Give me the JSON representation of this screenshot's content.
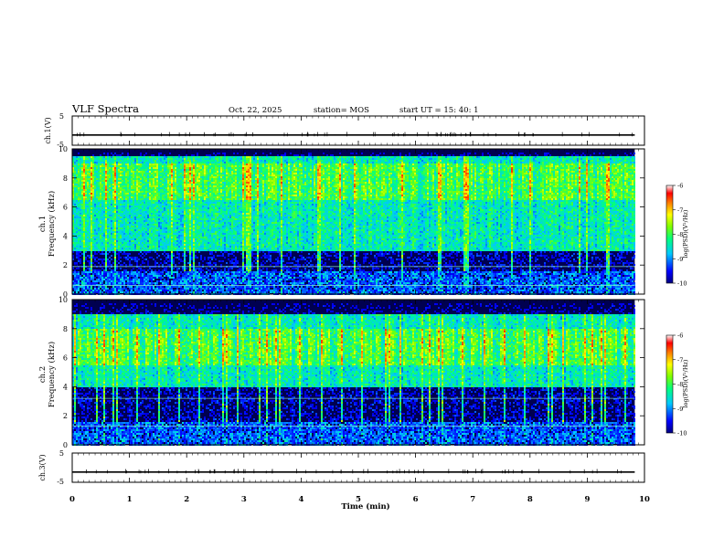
{
  "header": {
    "title": "VLF Spectra",
    "date": "Oct. 22, 2025",
    "station": "station= MOS",
    "start": "start  UT  =   15: 40: 1"
  },
  "chart_data": [
    {
      "type": "line",
      "name": "ch1-waveform",
      "ylabel": "ch.1(V)",
      "ylim": [
        -5,
        5
      ],
      "yticks": [
        "5",
        "-5"
      ],
      "level": -1.5
    },
    {
      "type": "heatmap",
      "name": "ch1-spectrogram",
      "ylabel_line1": "ch.1",
      "ylabel_line2": "Frequency (kHz)",
      "ylim": [
        0,
        10
      ],
      "yticks": [
        "0",
        "2",
        "4",
        "6",
        "8",
        "10"
      ],
      "xlim": [
        0,
        9.83
      ],
      "main_band_khz": [
        3,
        9.5
      ],
      "peak_band_khz": [
        6.5,
        9
      ],
      "horizontal_lines_khz": [
        1.9,
        0.6
      ],
      "colorbar": {
        "label": "log(PSD)(V²/Hz)",
        "ticks": [
          "-6",
          "-7",
          "-8",
          "-9",
          "-10"
        ],
        "range": [
          -10,
          -6
        ]
      }
    },
    {
      "type": "heatmap",
      "name": "ch2-spectrogram",
      "ylabel_line1": "ch.2",
      "ylabel_line2": "Frequency (kHz)",
      "ylim": [
        0,
        10
      ],
      "yticks": [
        "0",
        "2",
        "4",
        "6",
        "8",
        "10"
      ],
      "xlim": [
        0,
        9.83
      ],
      "main_band_khz": [
        4,
        9
      ],
      "peak_band_khz": [
        5.5,
        8
      ],
      "horizontal_lines_khz": [
        3.2,
        1.3
      ],
      "colorbar": {
        "label": "log(PSD)(V²/Hz)",
        "ticks": [
          "-6",
          "-7",
          "-8",
          "-9",
          "-10"
        ],
        "range": [
          -10,
          -6
        ]
      }
    },
    {
      "type": "line",
      "name": "ch3-waveform",
      "ylabel": "ch.3(V)",
      "ylim": [
        -5,
        5
      ],
      "yticks": [
        "5",
        "-5"
      ],
      "level": -1.5
    }
  ],
  "xaxis": {
    "label": "Time  (min)",
    "range": [
      0,
      10
    ],
    "ticks": [
      "0",
      "1",
      "2",
      "3",
      "4",
      "5",
      "6",
      "7",
      "8",
      "9",
      "10"
    ]
  }
}
